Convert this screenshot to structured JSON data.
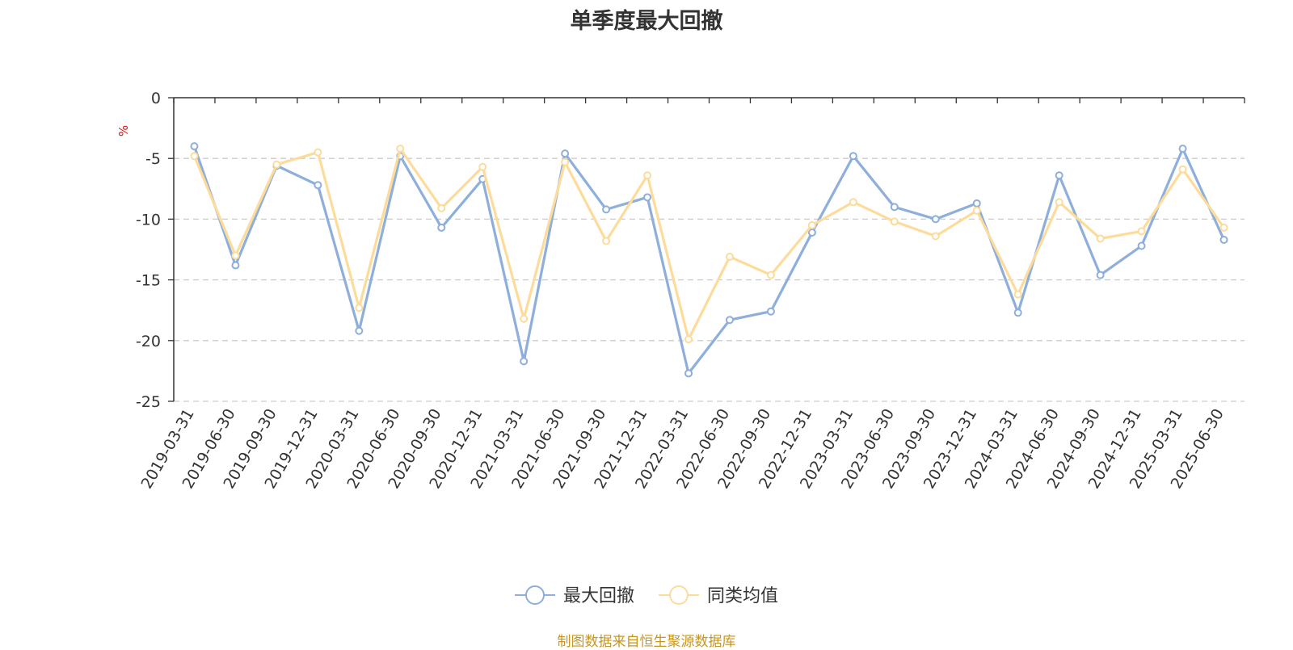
{
  "chart_data": {
    "type": "line",
    "title": "单季度最大回撤",
    "xlabel": "",
    "ylabel": "%",
    "ylim": [
      -25,
      0
    ],
    "yticks": [
      "0",
      "-5",
      "-10",
      "-15",
      "-20",
      "-25"
    ],
    "grid": true,
    "legend_position": "bottom",
    "categories": [
      "2019-03-31",
      "2019-06-30",
      "2019-09-30",
      "2019-12-31",
      "2020-03-31",
      "2020-06-30",
      "2020-09-30",
      "2020-12-31",
      "2021-03-31",
      "2021-06-30",
      "2021-09-30",
      "2021-12-31",
      "2022-03-31",
      "2022-06-30",
      "2022-09-30",
      "2022-12-31",
      "2023-03-31",
      "2023-06-30",
      "2023-09-30",
      "2023-12-31",
      "2024-03-31",
      "2024-06-30",
      "2024-09-30",
      "2024-12-31",
      "2025-03-31",
      "2025-06-30"
    ],
    "series": [
      {
        "name": "最大回撤",
        "color": "#8eaedb",
        "values": [
          -4.0,
          -13.8,
          -5.6,
          -7.2,
          -19.2,
          -4.8,
          -10.7,
          -6.7,
          -21.7,
          -4.6,
          -9.2,
          -8.2,
          -22.7,
          -18.3,
          -17.6,
          -11.1,
          -4.8,
          -9.0,
          -10.0,
          -8.7,
          -17.7,
          -6.4,
          -14.6,
          -12.2,
          -4.2,
          -11.7
        ]
      },
      {
        "name": "同类均值",
        "color": "#fddc9b",
        "values": [
          -4.8,
          -13.0,
          -5.5,
          -4.5,
          -17.3,
          -4.2,
          -9.1,
          -5.7,
          -18.2,
          -5.3,
          -11.8,
          -6.4,
          -19.9,
          -13.1,
          -14.6,
          -10.5,
          -8.6,
          -10.2,
          -11.4,
          -9.3,
          -16.2,
          -8.6,
          -11.6,
          -11.0,
          -5.9,
          -10.7
        ]
      }
    ]
  },
  "source": "制图数据来自恒生聚源数据库"
}
